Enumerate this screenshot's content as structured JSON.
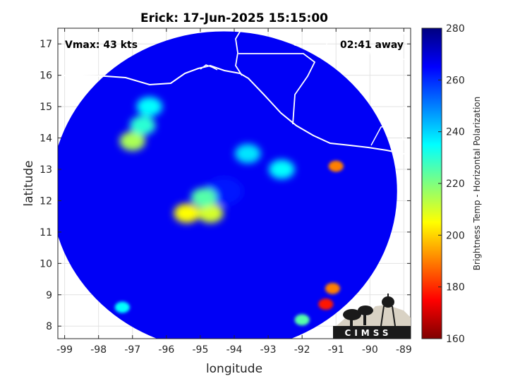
{
  "chart_data": {
    "type": "heatmap",
    "title": "Erick: 17-Jun-2025 15:15:00",
    "xlabel": "longitude",
    "ylabel": "latitude",
    "xlim": [
      -99.2,
      -88.8
    ],
    "ylim": [
      7.6,
      17.5
    ],
    "xticks": [
      -99,
      -98,
      -97,
      -96,
      -95,
      -94,
      -93,
      -92,
      -91,
      -90,
      -89
    ],
    "yticks": [
      8,
      9,
      10,
      11,
      12,
      13,
      14,
      15,
      16,
      17
    ],
    "grid": true,
    "annotations": {
      "vmax": "Vmax: 43 kts",
      "away": "02:41 away"
    },
    "colorbar": {
      "label": "Brightness Temp - Horizontal Polarization",
      "range": [
        160,
        280
      ],
      "ticks": [
        160,
        180,
        200,
        220,
        240,
        260,
        280
      ],
      "colormap": [
        "#7f0000",
        "#ff0000",
        "#ff7f00",
        "#ffff00",
        "#7fff7f",
        "#00ffff",
        "#007fff",
        "#0000ff",
        "#00007f"
      ]
    },
    "swath": {
      "center_lon": -94.3,
      "center_lat": 12.3,
      "radius_deg": 5.1
    },
    "features": [
      {
        "name": "eye",
        "lon": -94.3,
        "lat": 12.3,
        "tb": 262
      },
      {
        "name": "band",
        "lon": -95.4,
        "lat": 11.6,
        "tb": 205
      },
      {
        "name": "band",
        "lon": -94.7,
        "lat": 11.6,
        "tb": 210
      },
      {
        "name": "band",
        "lon": -94.9,
        "lat": 12.1,
        "tb": 225
      },
      {
        "name": "band",
        "lon": -97.0,
        "lat": 13.9,
        "tb": 215
      },
      {
        "name": "band",
        "lon": -96.7,
        "lat": 14.4,
        "tb": 230
      },
      {
        "name": "band",
        "lon": -96.5,
        "lat": 15.0,
        "tb": 235
      },
      {
        "name": "band",
        "lon": -92.6,
        "lat": 13.0,
        "tb": 235
      },
      {
        "name": "band",
        "lon": -93.6,
        "lat": 13.5,
        "tb": 238
      },
      {
        "name": "cell",
        "lon": -91.0,
        "lat": 13.1,
        "tb": 190
      },
      {
        "name": "cell",
        "lon": -91.3,
        "lat": 8.7,
        "tb": 178
      },
      {
        "name": "cell",
        "lon": -91.1,
        "lat": 9.2,
        "tb": 190
      },
      {
        "name": "cell",
        "lon": -92.0,
        "lat": 8.2,
        "tb": 225
      },
      {
        "name": "cell",
        "lon": -97.3,
        "lat": 8.6,
        "tb": 235
      }
    ],
    "logo": {
      "text": "CIMSS"
    }
  }
}
